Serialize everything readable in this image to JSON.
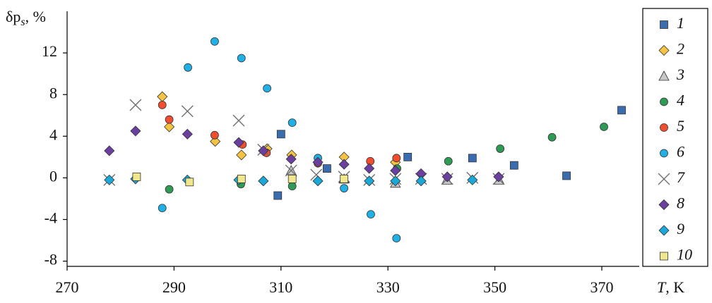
{
  "chart_data": {
    "type": "scatter",
    "ylabel": {
      "main": "δp",
      "sub": "s",
      "suffix": ", %"
    },
    "xlabel": {
      "var": "T",
      "unit": ", K"
    },
    "xlim": [
      270,
      377
    ],
    "xticks": [
      270,
      290,
      310,
      330,
      350,
      370
    ],
    "ylim": [
      -8.5,
      16
    ],
    "yticks": [
      -8,
      -4,
      0,
      4,
      8,
      12
    ],
    "series": [
      {
        "name": "1",
        "marker": "square",
        "color": "#3a6db0",
        "x": [
          310,
          309.4,
          318.6,
          333.7,
          345.8,
          353.6,
          363.4,
          373.7
        ],
        "values": [
          4.2,
          -1.7,
          0.9,
          2.0,
          1.9,
          1.2,
          0.2,
          6.5
        ]
      },
      {
        "name": "2",
        "marker": "diamond",
        "color": "#f5c342",
        "x": [
          287.8,
          289.1,
          297.7,
          302.6,
          307.4,
          312,
          321.8,
          331.4
        ],
        "values": [
          7.8,
          4.9,
          3.5,
          2.2,
          2.8,
          2.2,
          2.0,
          1.5
        ]
      },
      {
        "name": "3",
        "marker": "triangle",
        "color": "#c8c8c8",
        "x": [
          311.9,
          321.8,
          331.4,
          341,
          350.8
        ],
        "values": [
          0.7,
          -0.1,
          -0.5,
          -0.2,
          -0.2
        ]
      },
      {
        "name": "4",
        "marker": "circle",
        "color": "#2e9a55",
        "x": [
          289.1,
          302.5,
          312.1,
          331.7,
          341.3,
          351,
          360.7,
          370.4
        ],
        "values": [
          -1.1,
          -0.6,
          -0.8,
          0.9,
          1.6,
          2.8,
          3.9,
          4.9
        ]
      },
      {
        "name": "5",
        "marker": "circle",
        "color": "#f04e2e",
        "x": [
          287.8,
          289.1,
          297.6,
          302.8,
          307.3,
          316.9,
          326.7,
          331.6
        ],
        "values": [
          7.0,
          5.6,
          4.1,
          3.2,
          2.4,
          1.4,
          1.6,
          1.9
        ]
      },
      {
        "name": "6",
        "marker": "circle",
        "color": "#1fb0e6",
        "x": [
          287.8,
          292.6,
          297.6,
          302.6,
          307.4,
          312.1,
          316.9,
          321.8,
          326.8,
          331.6
        ],
        "values": [
          -2.9,
          10.6,
          13.1,
          11.5,
          8.6,
          5.3,
          1.9,
          -1.0,
          -3.5,
          -5.8
        ]
      },
      {
        "name": "7",
        "marker": "x",
        "color": "#707070",
        "x": [
          277.9,
          282.8,
          292.5,
          302.1,
          306.7,
          311.9,
          316.6,
          321.8,
          326.5,
          331.4,
          336.2,
          341.1,
          345.8,
          350.7
        ],
        "values": [
          -0.2,
          7.0,
          6.4,
          5.5,
          2.7,
          0.7,
          0.3,
          0.1,
          -0.2,
          -0.1,
          -0.1,
          -0.1,
          0,
          -0.1
        ]
      },
      {
        "name": "8",
        "marker": "diamond",
        "color": "#6b3fa0",
        "x": [
          277.9,
          282.8,
          292.5,
          302.1,
          306.7,
          311.9,
          316.9,
          321.8,
          326.5,
          331.4,
          336.2,
          341.1,
          350.7
        ],
        "values": [
          2.6,
          4.5,
          4.2,
          3.4,
          2.6,
          1.8,
          1.5,
          1.3,
          0.9,
          0.7,
          0.4,
          0.1,
          0.1
        ]
      },
      {
        "name": "9",
        "marker": "diamond",
        "color": "#1aa8d8",
        "x": [
          277.9,
          282.8,
          292.5,
          302.1,
          306.7,
          316.9,
          326.5,
          331.4,
          336.2,
          345.8
        ],
        "values": [
          -0.2,
          -0.1,
          -0.2,
          -0.2,
          -0.3,
          -0.3,
          -0.3,
          -0.3,
          -0.3,
          -0.2
        ]
      },
      {
        "name": "10",
        "marker": "square",
        "color": "#f0e68c",
        "x": [
          283,
          292.9,
          302.6,
          312.1,
          321.8
        ],
        "values": [
          0.1,
          -0.4,
          -0.1,
          -0.1,
          -0.1
        ]
      }
    ]
  }
}
